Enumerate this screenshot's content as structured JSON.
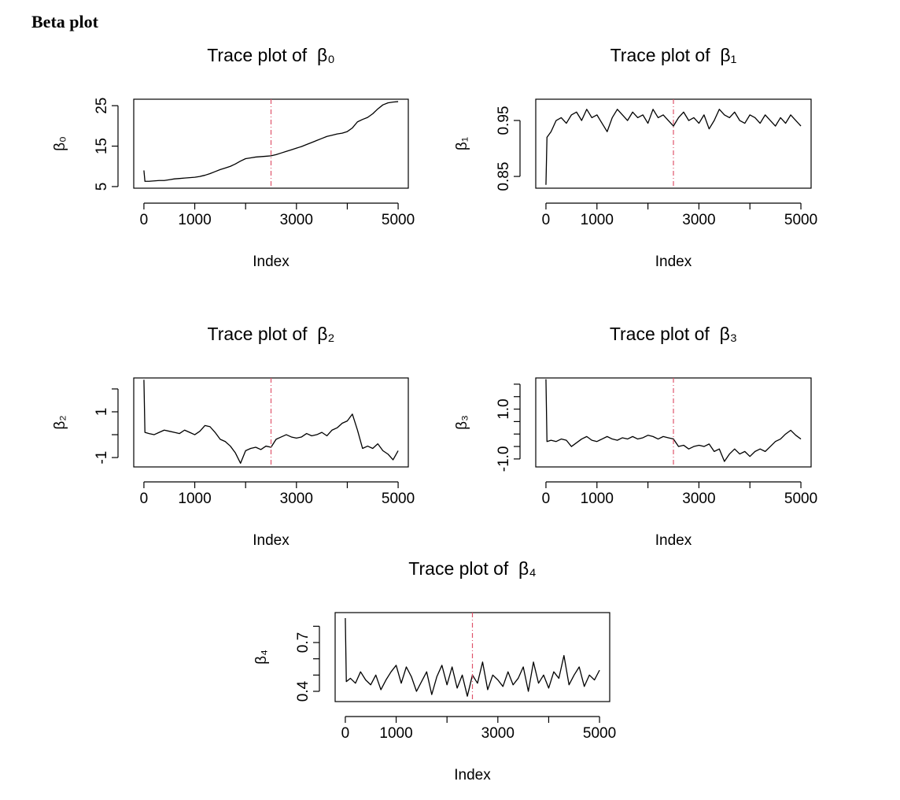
{
  "page_title": "Beta plot",
  "chart_data": [
    {
      "type": "line",
      "title": "Trace plot of  β₀",
      "xlabel": "Index",
      "ylabel": "β₀",
      "x": [
        0,
        20,
        100,
        200,
        300,
        400,
        500,
        600,
        700,
        800,
        900,
        1000,
        1100,
        1200,
        1300,
        1400,
        1500,
        1600,
        1700,
        1800,
        1900,
        2000,
        2100,
        2200,
        2300,
        2400,
        2500,
        2600,
        2700,
        2800,
        2900,
        3000,
        3100,
        3200,
        3300,
        3400,
        3500,
        3600,
        3700,
        3800,
        3900,
        4000,
        4100,
        4200,
        4300,
        4400,
        4500,
        4600,
        4700,
        4800,
        4900,
        5000
      ],
      "values": [
        9,
        6.3,
        6.3,
        6.4,
        6.5,
        6.5,
        6.7,
        6.9,
        7.0,
        7.1,
        7.2,
        7.3,
        7.5,
        7.8,
        8.2,
        8.7,
        9.2,
        9.6,
        10.0,
        10.6,
        11.3,
        11.9,
        12.1,
        12.3,
        12.4,
        12.5,
        12.6,
        12.9,
        13.3,
        13.7,
        14.1,
        14.5,
        14.9,
        15.4,
        15.9,
        16.4,
        16.9,
        17.4,
        17.7,
        18.0,
        18.2,
        18.6,
        19.5,
        21.0,
        21.6,
        22.1,
        23.0,
        24.2,
        25.2,
        25.7,
        25.9,
        26.0
      ],
      "color": "#000000",
      "vline": 2500,
      "vline_color": "#df536b",
      "xlim": [
        -200,
        5200
      ],
      "xticks": [
        0,
        1000,
        3000,
        5000
      ],
      "xticks_unlabeled": [
        2000,
        4000
      ],
      "ylim": [
        4.6,
        26.6
      ],
      "yticks": [
        5,
        15,
        25
      ],
      "yticks_unlabeled": []
    },
    {
      "type": "line",
      "title": "Trace plot of  β₁",
      "xlabel": "Index",
      "ylabel": "β₁",
      "x": [
        0,
        20,
        100,
        200,
        300,
        400,
        500,
        600,
        700,
        800,
        900,
        1000,
        1100,
        1200,
        1300,
        1400,
        1500,
        1600,
        1700,
        1800,
        1900,
        2000,
        2100,
        2200,
        2300,
        2400,
        2500,
        2600,
        2700,
        2800,
        2900,
        3000,
        3100,
        3200,
        3300,
        3400,
        3500,
        3600,
        3700,
        3800,
        3900,
        4000,
        4100,
        4200,
        4300,
        4400,
        4500,
        4600,
        4700,
        4800,
        4900,
        5000
      ],
      "values": [
        0.835,
        0.92,
        0.93,
        0.95,
        0.955,
        0.945,
        0.96,
        0.965,
        0.95,
        0.97,
        0.955,
        0.96,
        0.945,
        0.93,
        0.955,
        0.97,
        0.96,
        0.95,
        0.965,
        0.955,
        0.96,
        0.945,
        0.97,
        0.955,
        0.96,
        0.95,
        0.94,
        0.955,
        0.965,
        0.95,
        0.955,
        0.945,
        0.96,
        0.935,
        0.95,
        0.97,
        0.96,
        0.955,
        0.965,
        0.95,
        0.945,
        0.96,
        0.955,
        0.945,
        0.96,
        0.95,
        0.94,
        0.955,
        0.945,
        0.96,
        0.95,
        0.94
      ],
      "color": "#000000",
      "vline": 2500,
      "vline_color": "#df536b",
      "xlim": [
        -200,
        5200
      ],
      "xticks": [
        0,
        1000,
        3000,
        5000
      ],
      "xticks_unlabeled": [
        2000,
        4000
      ],
      "ylim": [
        0.829,
        0.988
      ],
      "yticks": [
        0.85,
        0.95
      ],
      "yticks_unlabeled": []
    },
    {
      "type": "line",
      "title": "Trace plot of  β₂",
      "xlabel": "Index",
      "ylabel": "β₂",
      "x": [
        0,
        20,
        100,
        200,
        300,
        400,
        500,
        600,
        700,
        800,
        900,
        1000,
        1100,
        1200,
        1300,
        1400,
        1500,
        1600,
        1700,
        1800,
        1900,
        2000,
        2100,
        2200,
        2300,
        2400,
        2500,
        2600,
        2700,
        2800,
        2900,
        3000,
        3100,
        3200,
        3300,
        3400,
        3500,
        3600,
        3700,
        3800,
        3900,
        4000,
        4100,
        4200,
        4300,
        4400,
        4500,
        4600,
        4700,
        4800,
        4900,
        5000
      ],
      "values": [
        2.4,
        0.1,
        0.05,
        0,
        0.1,
        0.2,
        0.15,
        0.1,
        0.05,
        0.2,
        0.1,
        0,
        0.15,
        0.4,
        0.35,
        0.1,
        -0.2,
        -0.3,
        -0.5,
        -0.8,
        -1.25,
        -0.7,
        -0.6,
        -0.55,
        -0.65,
        -0.5,
        -0.55,
        -0.2,
        -0.1,
        0,
        -0.1,
        -0.15,
        -0.1,
        0.05,
        -0.05,
        0,
        0.1,
        -0.05,
        0.2,
        0.3,
        0.5,
        0.6,
        0.9,
        0.2,
        -0.6,
        -0.5,
        -0.6,
        -0.4,
        -0.7,
        -0.85,
        -1.1,
        -0.7
      ],
      "color": "#000000",
      "vline": 2500,
      "vline_color": "#df536b",
      "xlim": [
        -200,
        5200
      ],
      "xticks": [
        0,
        1000,
        3000,
        5000
      ],
      "xticks_unlabeled": [
        2000,
        4000
      ],
      "ylim": [
        -1.41,
        2.48
      ],
      "yticks": [
        -1,
        1
      ],
      "yticks_unlabeled": [
        0,
        2
      ]
    },
    {
      "type": "line",
      "title": "Trace plot of  β₃",
      "xlabel": "Index",
      "ylabel": "β₃",
      "x": [
        0,
        20,
        100,
        200,
        300,
        400,
        500,
        600,
        700,
        800,
        900,
        1000,
        1100,
        1200,
        1300,
        1400,
        1500,
        1600,
        1700,
        1800,
        1900,
        2000,
        2100,
        2200,
        2300,
        2400,
        2500,
        2600,
        2700,
        2800,
        2900,
        3000,
        3100,
        3200,
        3300,
        3400,
        3500,
        3600,
        3700,
        3800,
        3900,
        4000,
        4100,
        4200,
        4300,
        4400,
        4500,
        4600,
        4700,
        4800,
        4900,
        5000
      ],
      "values": [
        2.2,
        -0.3,
        -0.25,
        -0.3,
        -0.2,
        -0.25,
        -0.5,
        -0.35,
        -0.2,
        -0.1,
        -0.25,
        -0.3,
        -0.2,
        -0.1,
        -0.2,
        -0.25,
        -0.15,
        -0.2,
        -0.1,
        -0.2,
        -0.15,
        -0.05,
        -0.1,
        -0.2,
        -0.1,
        -0.15,
        -0.2,
        -0.5,
        -0.45,
        -0.6,
        -0.5,
        -0.45,
        -0.5,
        -0.4,
        -0.7,
        -0.6,
        -1.1,
        -0.8,
        -0.6,
        -0.8,
        -0.7,
        -0.9,
        -0.7,
        -0.6,
        -0.7,
        -0.5,
        -0.3,
        -0.2,
        0,
        0.15,
        -0.05,
        -0.2
      ],
      "color": "#000000",
      "vline": 2500,
      "vline_color": "#df536b",
      "xlim": [
        -200,
        5200
      ],
      "xticks": [
        0,
        1000,
        3000,
        5000
      ],
      "xticks_unlabeled": [
        2000,
        4000
      ],
      "ylim": [
        -1.32,
        2.25
      ],
      "yticks": [
        {
          "value": -1,
          "label": "-1.0"
        },
        {
          "value": 1,
          "label": "1.0"
        }
      ],
      "yticks_unlabeled": [
        -0.5,
        0,
        0.5,
        1.5,
        2
      ]
    },
    {
      "type": "line",
      "title": "Trace plot of  β₄",
      "xlabel": "Index",
      "ylabel": "β₄",
      "x": [
        0,
        20,
        100,
        200,
        300,
        400,
        500,
        600,
        700,
        800,
        900,
        1000,
        1100,
        1200,
        1300,
        1400,
        1500,
        1600,
        1700,
        1800,
        1900,
        2000,
        2100,
        2200,
        2300,
        2400,
        2500,
        2600,
        2700,
        2800,
        2900,
        3000,
        3100,
        3200,
        3300,
        3400,
        3500,
        3600,
        3700,
        3800,
        3900,
        4000,
        4100,
        4200,
        4300,
        4400,
        4500,
        4600,
        4700,
        4800,
        4900,
        5000
      ],
      "values": [
        0.85,
        0.46,
        0.48,
        0.45,
        0.52,
        0.47,
        0.44,
        0.5,
        0.41,
        0.47,
        0.52,
        0.56,
        0.45,
        0.55,
        0.49,
        0.4,
        0.46,
        0.52,
        0.38,
        0.49,
        0.56,
        0.44,
        0.55,
        0.42,
        0.5,
        0.37,
        0.5,
        0.45,
        0.58,
        0.41,
        0.5,
        0.47,
        0.43,
        0.52,
        0.44,
        0.48,
        0.55,
        0.4,
        0.58,
        0.45,
        0.5,
        0.42,
        0.52,
        0.48,
        0.62,
        0.44,
        0.5,
        0.55,
        0.43,
        0.5,
        0.47,
        0.53
      ],
      "color": "#000000",
      "vline": 2500,
      "vline_color": "#df536b",
      "xlim": [
        -200,
        5200
      ],
      "xticks": [
        0,
        1000,
        3000,
        5000
      ],
      "xticks_unlabeled": [
        2000,
        4000
      ],
      "ylim": [
        0.337,
        0.884
      ],
      "yticks": [
        0.4,
        0.7
      ],
      "yticks_unlabeled": [
        0.5,
        0.6,
        0.8
      ]
    }
  ]
}
